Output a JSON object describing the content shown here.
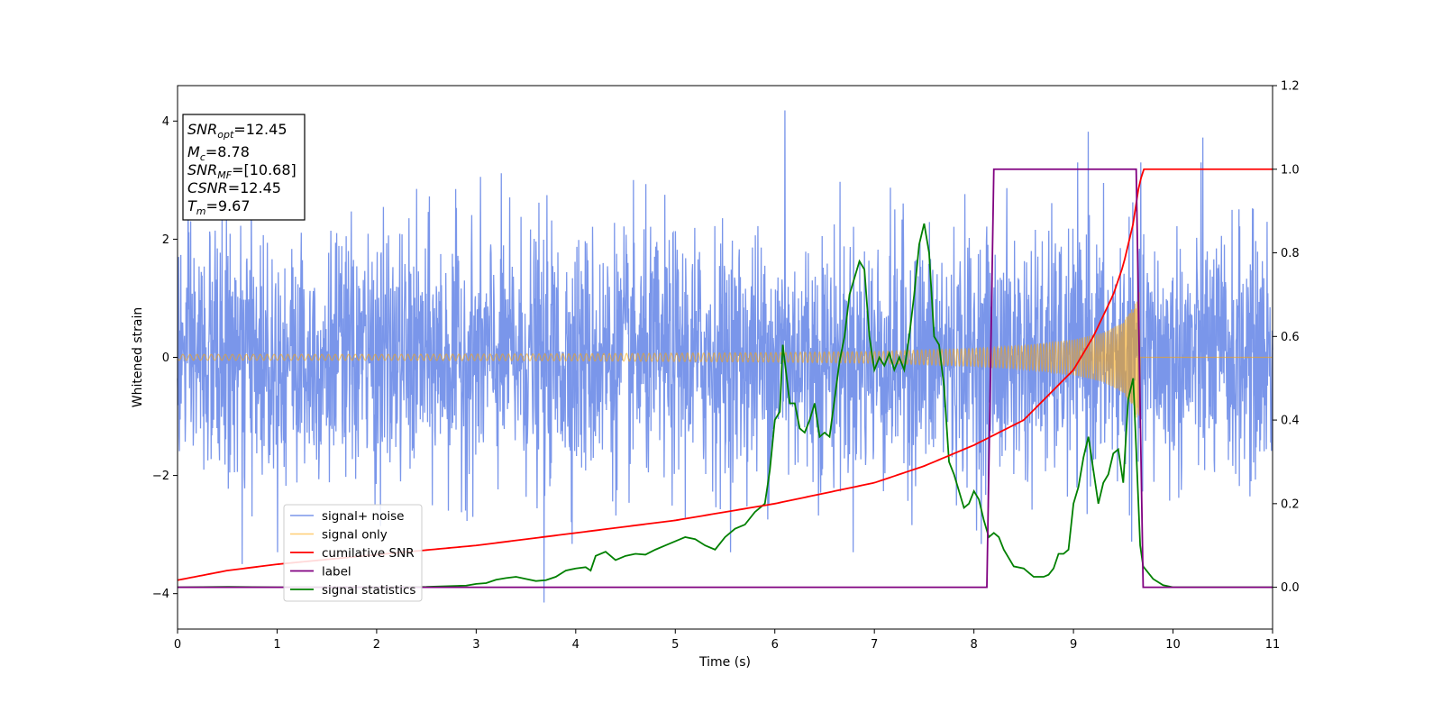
{
  "chart_data": {
    "type": "line",
    "xlabel": "Time (s)",
    "ylabel_left": "Whitened strain",
    "ylabel_right": "",
    "xlim": [
      0,
      11
    ],
    "ylim_left": [
      -4.6,
      4.6
    ],
    "ylim_right": [
      -0.1,
      1.2
    ],
    "x_ticks": [
      "0",
      "1",
      "2",
      "3",
      "4",
      "5",
      "6",
      "7",
      "8",
      "9",
      "10",
      "11"
    ],
    "y_left_ticks": [
      "4",
      "2",
      "0",
      "−2",
      "−4"
    ],
    "y_right_ticks": [
      "1.2",
      "1.0",
      "0.8",
      "0.6",
      "0.4",
      "0.2",
      "0.0"
    ],
    "grid": false,
    "legend_position": "lower-left",
    "info_box": {
      "lines": [
        {
          "label": "SNR",
          "sub": "opt",
          "value": "=12.45"
        },
        {
          "label": "M",
          "sub": "c",
          "value": "=8.78"
        },
        {
          "label": "SNR",
          "sub": "MF",
          "value": "=[10.68]"
        },
        {
          "label": "CSNR",
          "sub": "",
          "value": "=12.45"
        },
        {
          "label": "T",
          "sub": "m",
          "value": "=9.67"
        }
      ]
    },
    "series": [
      {
        "name": "signal+ noise",
        "axis": "left",
        "color": "#4169e1",
        "style": "dense noise, approx. N(0,1), peaks up to ~4.2",
        "peaks": [
          {
            "x": 0.65,
            "y": -3.5
          },
          {
            "x": 3.68,
            "y": -4.15
          },
          {
            "x": 6.1,
            "y": 4.18
          },
          {
            "x": 9.15,
            "y": 3.82
          },
          {
            "x": 10.3,
            "y": 3.72
          }
        ]
      },
      {
        "name": "signal only",
        "axis": "left",
        "color": "#ffa500",
        "style": "chirp, amplitude growing to ~1.2 at 9.67 s, zero afterwards",
        "amplitude": {
          "x": [
            0,
            2,
            4,
            6,
            7,
            8,
            8.5,
            9,
            9.3,
            9.5,
            9.6,
            9.67
          ],
          "y": [
            0.05,
            0.05,
            0.06,
            0.08,
            0.1,
            0.15,
            0.2,
            0.3,
            0.42,
            0.6,
            0.85,
            1.2
          ]
        }
      },
      {
        "name": "cumilative SNR",
        "axis": "right",
        "color": "#ff0000",
        "x": [
          0,
          0.5,
          1,
          2,
          3,
          4,
          5,
          6,
          7,
          7.5,
          8,
          8.5,
          9,
          9.2,
          9.4,
          9.5,
          9.6,
          9.65,
          9.7,
          11
        ],
        "y": [
          0.017,
          0.04,
          0.055,
          0.078,
          0.1,
          0.13,
          0.16,
          0.2,
          0.25,
          0.29,
          0.34,
          0.4,
          0.52,
          0.6,
          0.7,
          0.77,
          0.87,
          0.95,
          1.0,
          1.0
        ]
      },
      {
        "name": "label",
        "axis": "right",
        "color": "#800080",
        "x": [
          0,
          8.13,
          8.2,
          9.63,
          9.7,
          11
        ],
        "y": [
          0,
          0,
          1.0,
          1.0,
          0,
          0
        ]
      },
      {
        "name": "signal statistics",
        "axis": "right",
        "color": "#008000",
        "x": [
          0,
          0.5,
          1,
          2,
          2.5,
          2.9,
          3,
          3.1,
          3.2,
          3.3,
          3.4,
          3.5,
          3.6,
          3.7,
          3.8,
          3.9,
          4,
          4.1,
          4.15,
          4.2,
          4.3,
          4.4,
          4.5,
          4.6,
          4.7,
          4.8,
          4.9,
          5,
          5.1,
          5.2,
          5.3,
          5.4,
          5.5,
          5.6,
          5.7,
          5.8,
          5.9,
          5.95,
          6.0,
          6.05,
          6.08,
          6.15,
          6.2,
          6.25,
          6.3,
          6.35,
          6.4,
          6.45,
          6.5,
          6.55,
          6.6,
          6.65,
          6.7,
          6.75,
          6.8,
          6.85,
          6.9,
          6.95,
          7.0,
          7.05,
          7.1,
          7.15,
          7.2,
          7.25,
          7.3,
          7.35,
          7.4,
          7.45,
          7.5,
          7.55,
          7.6,
          7.65,
          7.7,
          7.75,
          7.8,
          7.85,
          7.9,
          7.95,
          8.0,
          8.05,
          8.1,
          8.15,
          8.2,
          8.25,
          8.3,
          8.4,
          8.5,
          8.6,
          8.7,
          8.75,
          8.8,
          8.85,
          8.9,
          8.95,
          9.0,
          9.05,
          9.1,
          9.15,
          9.2,
          9.25,
          9.3,
          9.35,
          9.4,
          9.45,
          9.5,
          9.55,
          9.6,
          9.63,
          9.67,
          9.7,
          9.8,
          9.9,
          10,
          10.5,
          11
        ],
        "y": [
          0,
          0.001,
          0,
          0,
          0.001,
          0.004,
          0.008,
          0.01,
          0.018,
          0.022,
          0.025,
          0.02,
          0.015,
          0.017,
          0.025,
          0.04,
          0.045,
          0.048,
          0.04,
          0.075,
          0.085,
          0.065,
          0.075,
          0.08,
          0.078,
          0.09,
          0.1,
          0.11,
          0.12,
          0.115,
          0.1,
          0.09,
          0.12,
          0.14,
          0.15,
          0.18,
          0.2,
          0.28,
          0.4,
          0.42,
          0.58,
          0.44,
          0.44,
          0.38,
          0.37,
          0.4,
          0.44,
          0.36,
          0.37,
          0.36,
          0.45,
          0.54,
          0.6,
          0.7,
          0.74,
          0.78,
          0.76,
          0.6,
          0.52,
          0.55,
          0.53,
          0.56,
          0.52,
          0.55,
          0.52,
          0.6,
          0.7,
          0.82,
          0.87,
          0.8,
          0.6,
          0.58,
          0.48,
          0.3,
          0.27,
          0.23,
          0.19,
          0.2,
          0.23,
          0.21,
          0.16,
          0.12,
          0.13,
          0.12,
          0.09,
          0.05,
          0.045,
          0.025,
          0.025,
          0.03,
          0.045,
          0.08,
          0.08,
          0.09,
          0.2,
          0.24,
          0.31,
          0.36,
          0.28,
          0.2,
          0.25,
          0.27,
          0.32,
          0.33,
          0.25,
          0.45,
          0.5,
          0.33,
          0.1,
          0.05,
          0.02,
          0.005,
          0,
          0,
          0
        ]
      }
    ]
  }
}
